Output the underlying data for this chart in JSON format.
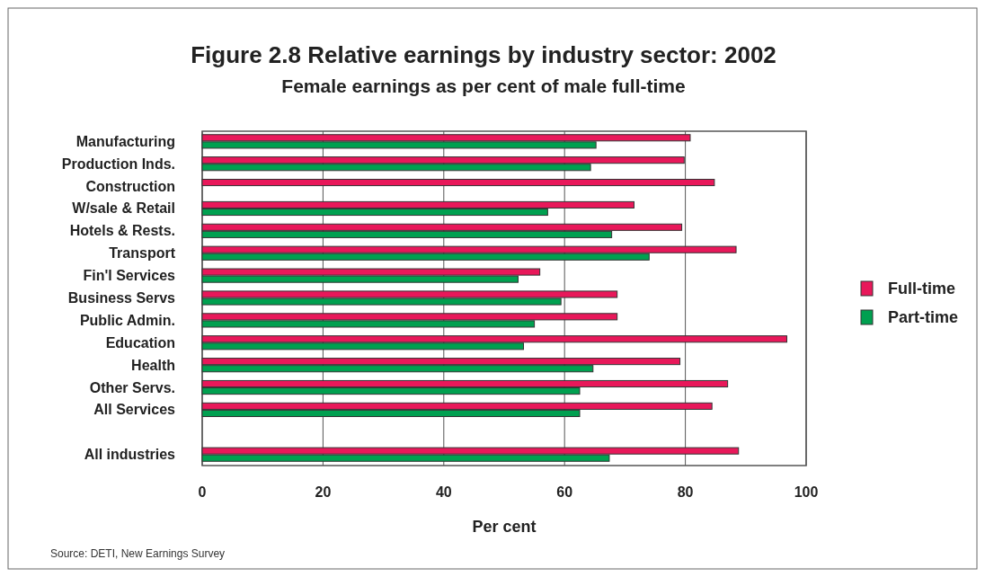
{
  "chart_data": {
    "type": "bar",
    "orientation": "horizontal",
    "title": "Figure 2.8 Relative earnings by industry sector: 2002",
    "subtitle": "Female earnings as per cent of male full-time",
    "xlabel": "Per cent",
    "categories": [
      "Manufacturing",
      "Production Inds.",
      "Construction",
      "W/sale & Retail",
      "Hotels & Rests.",
      "Transport",
      "Fin'l Services",
      "Business Servs",
      "Public Admin.",
      "Education",
      "Health",
      "Other Servs.",
      "All Services",
      null,
      "All industries"
    ],
    "series": [
      {
        "name": "Full-time",
        "color": "#e8185a",
        "values": [
          80.8,
          79.8,
          84.8,
          71.5,
          79.4,
          88.4,
          55.9,
          68.7,
          68.7,
          96.8,
          79.1,
          87.0,
          84.4,
          null,
          88.8
        ]
      },
      {
        "name": "Part-time",
        "color": "#00a050",
        "values": [
          65.2,
          64.3,
          null,
          57.2,
          67.8,
          74.0,
          52.3,
          59.4,
          55.0,
          53.2,
          64.7,
          62.5,
          62.5,
          null,
          67.4
        ]
      }
    ],
    "xlim": [
      0,
      100
    ],
    "xticks": [
      0,
      20,
      40,
      60,
      80,
      100
    ],
    "grid": "x",
    "legend": "right",
    "annotations": [
      "Source: DETI, New Earnings Survey"
    ]
  }
}
